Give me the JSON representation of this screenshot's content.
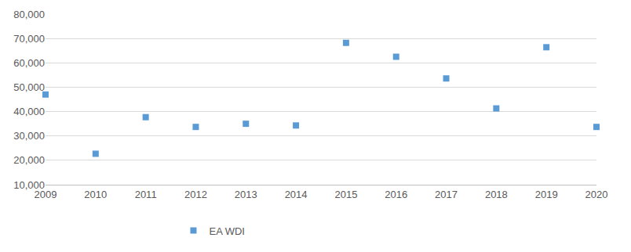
{
  "chart_data": {
    "type": "scatter",
    "x": [
      2009,
      2010,
      2011,
      2012,
      2013,
      2014,
      2015,
      2016,
      2017,
      2018,
      2019,
      2020
    ],
    "series": [
      {
        "name": "EA WDI",
        "color": "#5b9bd5",
        "marker": "square",
        "values": [
          47000,
          22700,
          37700,
          33700,
          35000,
          34300,
          68200,
          62500,
          53600,
          41300,
          66400,
          33700
        ]
      }
    ],
    "xlim": [
      2009,
      2020
    ],
    "xticks": [
      2009,
      2010,
      2011,
      2012,
      2013,
      2014,
      2015,
      2016,
      2017,
      2018,
      2019,
      2020
    ],
    "ylim": [
      10000,
      80000
    ],
    "yticks": [
      {
        "value": 10000,
        "label": "10,000"
      },
      {
        "value": 20000,
        "label": "20,000"
      },
      {
        "value": 30000,
        "label": "30,000"
      },
      {
        "value": 40000,
        "label": "40,000"
      },
      {
        "value": 50000,
        "label": "50,000"
      },
      {
        "value": 60000,
        "label": "60,000"
      },
      {
        "value": 70000,
        "label": "70,000"
      },
      {
        "value": 80000,
        "label": "80,000"
      }
    ],
    "grid": true,
    "legend": "bottom"
  }
}
